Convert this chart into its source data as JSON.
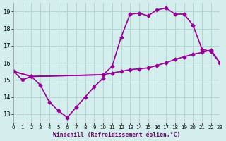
{
  "line1_x": [
    0,
    1,
    2,
    3,
    4,
    5,
    6,
    7,
    8,
    9,
    10
  ],
  "line1_y": [
    15.5,
    15.0,
    15.2,
    14.7,
    13.7,
    13.2,
    12.8,
    13.4,
    14.0,
    14.6,
    15.1
  ],
  "line2_x": [
    0,
    2,
    10,
    11,
    12,
    13,
    14,
    15,
    16,
    17,
    18,
    19,
    20,
    21,
    22,
    23
  ],
  "line2_y": [
    15.5,
    15.2,
    15.3,
    15.8,
    17.5,
    18.85,
    18.9,
    18.75,
    19.1,
    19.2,
    18.85,
    18.85,
    18.2,
    16.8,
    16.65,
    16.0
  ],
  "line3_x": [
    0,
    2,
    10,
    11,
    12,
    13,
    14,
    15,
    16,
    17,
    18,
    19,
    20,
    21,
    22,
    23
  ],
  "line3_y": [
    15.5,
    15.2,
    15.3,
    15.4,
    15.5,
    15.6,
    15.65,
    15.7,
    15.85,
    16.0,
    16.2,
    16.35,
    16.5,
    16.6,
    16.75,
    16.0
  ],
  "line_color": "#990099",
  "bg_color": "#d4eeed",
  "grid_color": "#b0d0ce",
  "xlim": [
    0,
    23
  ],
  "ylim": [
    12.5,
    19.5
  ],
  "yticks": [
    13,
    14,
    15,
    16,
    17,
    18,
    19
  ],
  "xticks": [
    0,
    1,
    2,
    3,
    4,
    5,
    6,
    7,
    8,
    9,
    10,
    11,
    12,
    13,
    14,
    15,
    16,
    17,
    18,
    19,
    20,
    21,
    22,
    23
  ],
  "xlabel": "Windchill (Refroidissement éolien,°C)",
  "marker": "D",
  "markersize": 2.5,
  "linewidth": 1.2
}
